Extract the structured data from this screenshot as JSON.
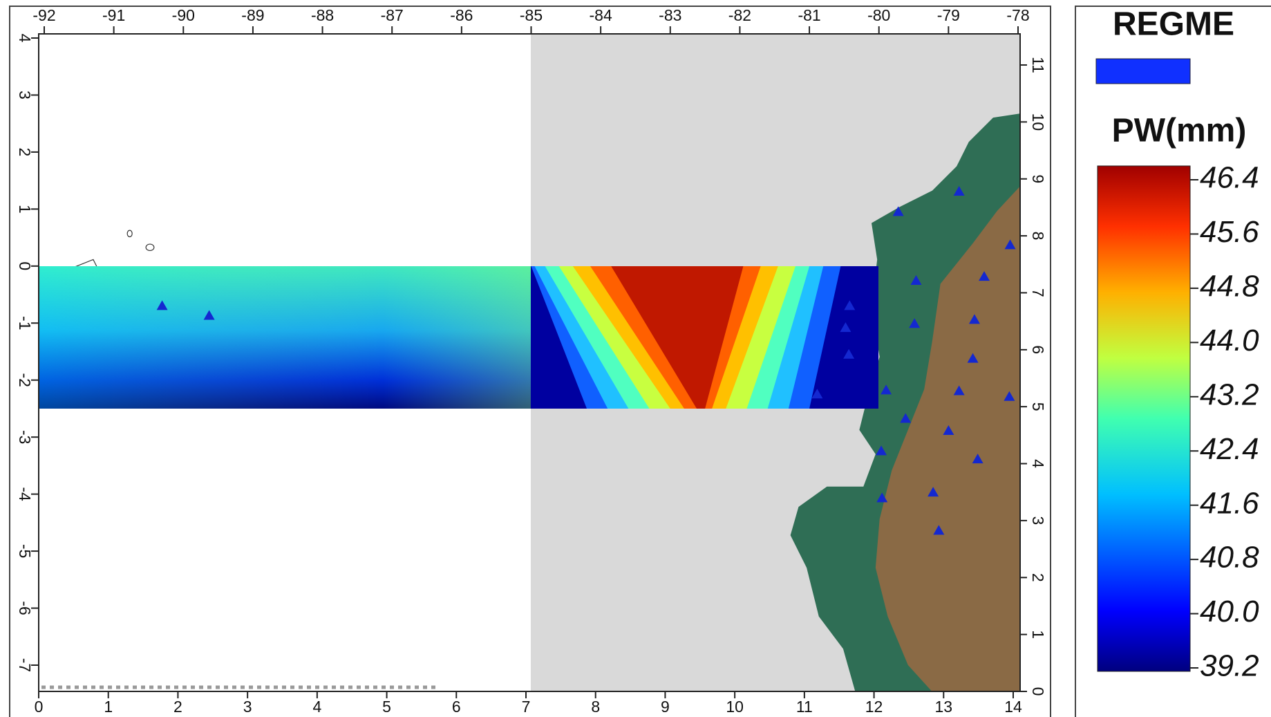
{
  "map": {
    "top_axis": {
      "ticks": [
        -92,
        -91,
        -90,
        -89,
        -88,
        -87,
        -86,
        -85,
        -84,
        -83,
        -82,
        -81,
        -80,
        -79,
        -78
      ]
    },
    "bottom_axis": {
      "ticks": [
        0,
        1,
        2,
        3,
        4,
        5,
        6,
        7,
        8,
        9,
        10,
        11,
        12,
        13,
        14
      ]
    },
    "left_axis": {
      "ticks": [
        4,
        3,
        2,
        1,
        0,
        -1,
        -2,
        -3,
        -4,
        -5,
        -6,
        -7
      ]
    },
    "right_axis": {
      "ticks": [
        0,
        1,
        2,
        3,
        4,
        5,
        6,
        7,
        8,
        9,
        10,
        11
      ]
    }
  },
  "legend": {
    "stations_title": "REGME",
    "colorbar_title": "PW(mm)",
    "colorbar_ticks": [
      46.4,
      45.6,
      44.8,
      {
        "value": 44.0,
        "label": "44.0"
      },
      43.2,
      42.4,
      41.6,
      40.8,
      {
        "value": 40.0,
        "label": "40.0"
      },
      39.2
    ]
  }
}
